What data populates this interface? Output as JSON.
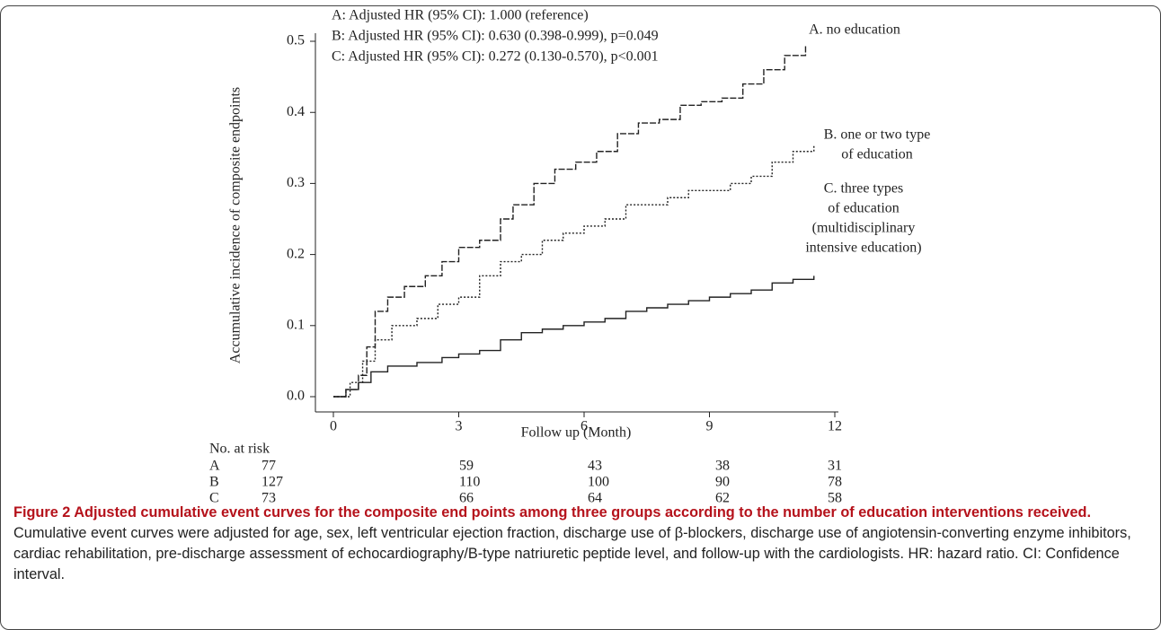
{
  "chart_data": {
    "type": "step",
    "annotations": [
      "A: Adjusted HR (95% CI): 1.000 (reference)",
      "B: Adjusted HR (95% CI): 0.630 (0.398-0.999), p=0.049",
      "C: Adjusted HR (95% CI): 0.272 (0.130-0.570), p<0.001"
    ],
    "x_label": "Follow up (Month)",
    "y_label": "Accumulative incidence of composite endpoints",
    "xlim": [
      0,
      12
    ],
    "xticks": [
      0,
      3,
      6,
      9,
      12
    ],
    "ylim": [
      0,
      0.5
    ],
    "yticks": [
      {
        "value": 0,
        "label": "0.0"
      },
      0.1,
      0.2,
      0.3,
      0.4,
      0.5
    ],
    "series": [
      {
        "name": [
          "A. no education"
        ],
        "color": "#222222",
        "line_style": "dashed",
        "x": [
          0,
          0.3,
          0.6,
          0.8,
          1.0,
          1.3,
          1.7,
          2.2,
          2.6,
          3.0,
          3.5,
          4.0,
          4.3,
          4.8,
          5.3,
          5.8,
          6.3,
          6.8,
          7.3,
          7.8,
          8.3,
          8.8,
          9.3,
          9.8,
          10.3,
          10.8,
          11.3
        ],
        "values": [
          0,
          0.01,
          0.03,
          0.07,
          0.12,
          0.14,
          0.155,
          0.17,
          0.19,
          0.21,
          0.22,
          0.25,
          0.27,
          0.3,
          0.32,
          0.33,
          0.345,
          0.37,
          0.385,
          0.39,
          0.41,
          0.415,
          0.42,
          0.44,
          0.46,
          0.48,
          0.495
        ]
      },
      {
        "name": [
          "B. one or two type",
          "of education"
        ],
        "color": "#222222",
        "line_style": "dotted",
        "x": [
          0,
          0.4,
          0.7,
          1.0,
          1.4,
          2.0,
          2.5,
          3.0,
          3.5,
          4.0,
          4.5,
          5.0,
          5.5,
          6.0,
          6.5,
          7.0,
          7.5,
          8.0,
          8.5,
          9.0,
          9.5,
          10.0,
          10.5,
          11.0,
          11.5
        ],
        "values": [
          0,
          0.02,
          0.05,
          0.08,
          0.1,
          0.11,
          0.13,
          0.14,
          0.17,
          0.19,
          0.2,
          0.22,
          0.23,
          0.24,
          0.25,
          0.27,
          0.27,
          0.28,
          0.29,
          0.29,
          0.3,
          0.31,
          0.33,
          0.345,
          0.355
        ]
      },
      {
        "name": [
          "C. three types",
          "of education",
          "(multidisciplinary",
          "intensive education)"
        ],
        "color": "#222222",
        "line_style": "solid",
        "x": [
          0,
          0.3,
          0.6,
          0.9,
          1.3,
          2.0,
          2.6,
          3.0,
          3.5,
          4.0,
          4.5,
          5.0,
          5.5,
          6.0,
          6.5,
          7.0,
          7.5,
          8.0,
          8.5,
          9.0,
          9.5,
          10.0,
          10.5,
          11.0,
          11.5
        ],
        "values": [
          0,
          0.01,
          0.02,
          0.035,
          0.043,
          0.048,
          0.055,
          0.06,
          0.065,
          0.08,
          0.09,
          0.095,
          0.1,
          0.105,
          0.11,
          0.12,
          0.125,
          0.13,
          0.135,
          0.14,
          0.145,
          0.15,
          0.16,
          0.165,
          0.17
        ]
      }
    ],
    "risk_table": {
      "title": "No. at risk",
      "rows": [
        {
          "label": "A",
          "values": [
            77,
            59,
            43,
            38,
            31
          ]
        },
        {
          "label": "B",
          "values": [
            127,
            110,
            100,
            90,
            78
          ]
        },
        {
          "label": "C",
          "values": [
            73,
            66,
            64,
            62,
            58
          ]
        }
      ]
    }
  },
  "caption": {
    "title": "Figure 2 Adjusted cumulative event curves for the composite end points among three groups according to the number of education interventions received.",
    "text": "Cumulative event curves were adjusted for age, sex, left ventricular ejection fraction, discharge use of β-blockers, discharge use of angiotensin-converting enzyme inhibitors, cardiac rehabilitation, pre-discharge assessment of echocardiography/B-type natriuretic peptide level, and follow-up with the cardiologists. HR: hazard ratio. CI: Confidence interval."
  }
}
